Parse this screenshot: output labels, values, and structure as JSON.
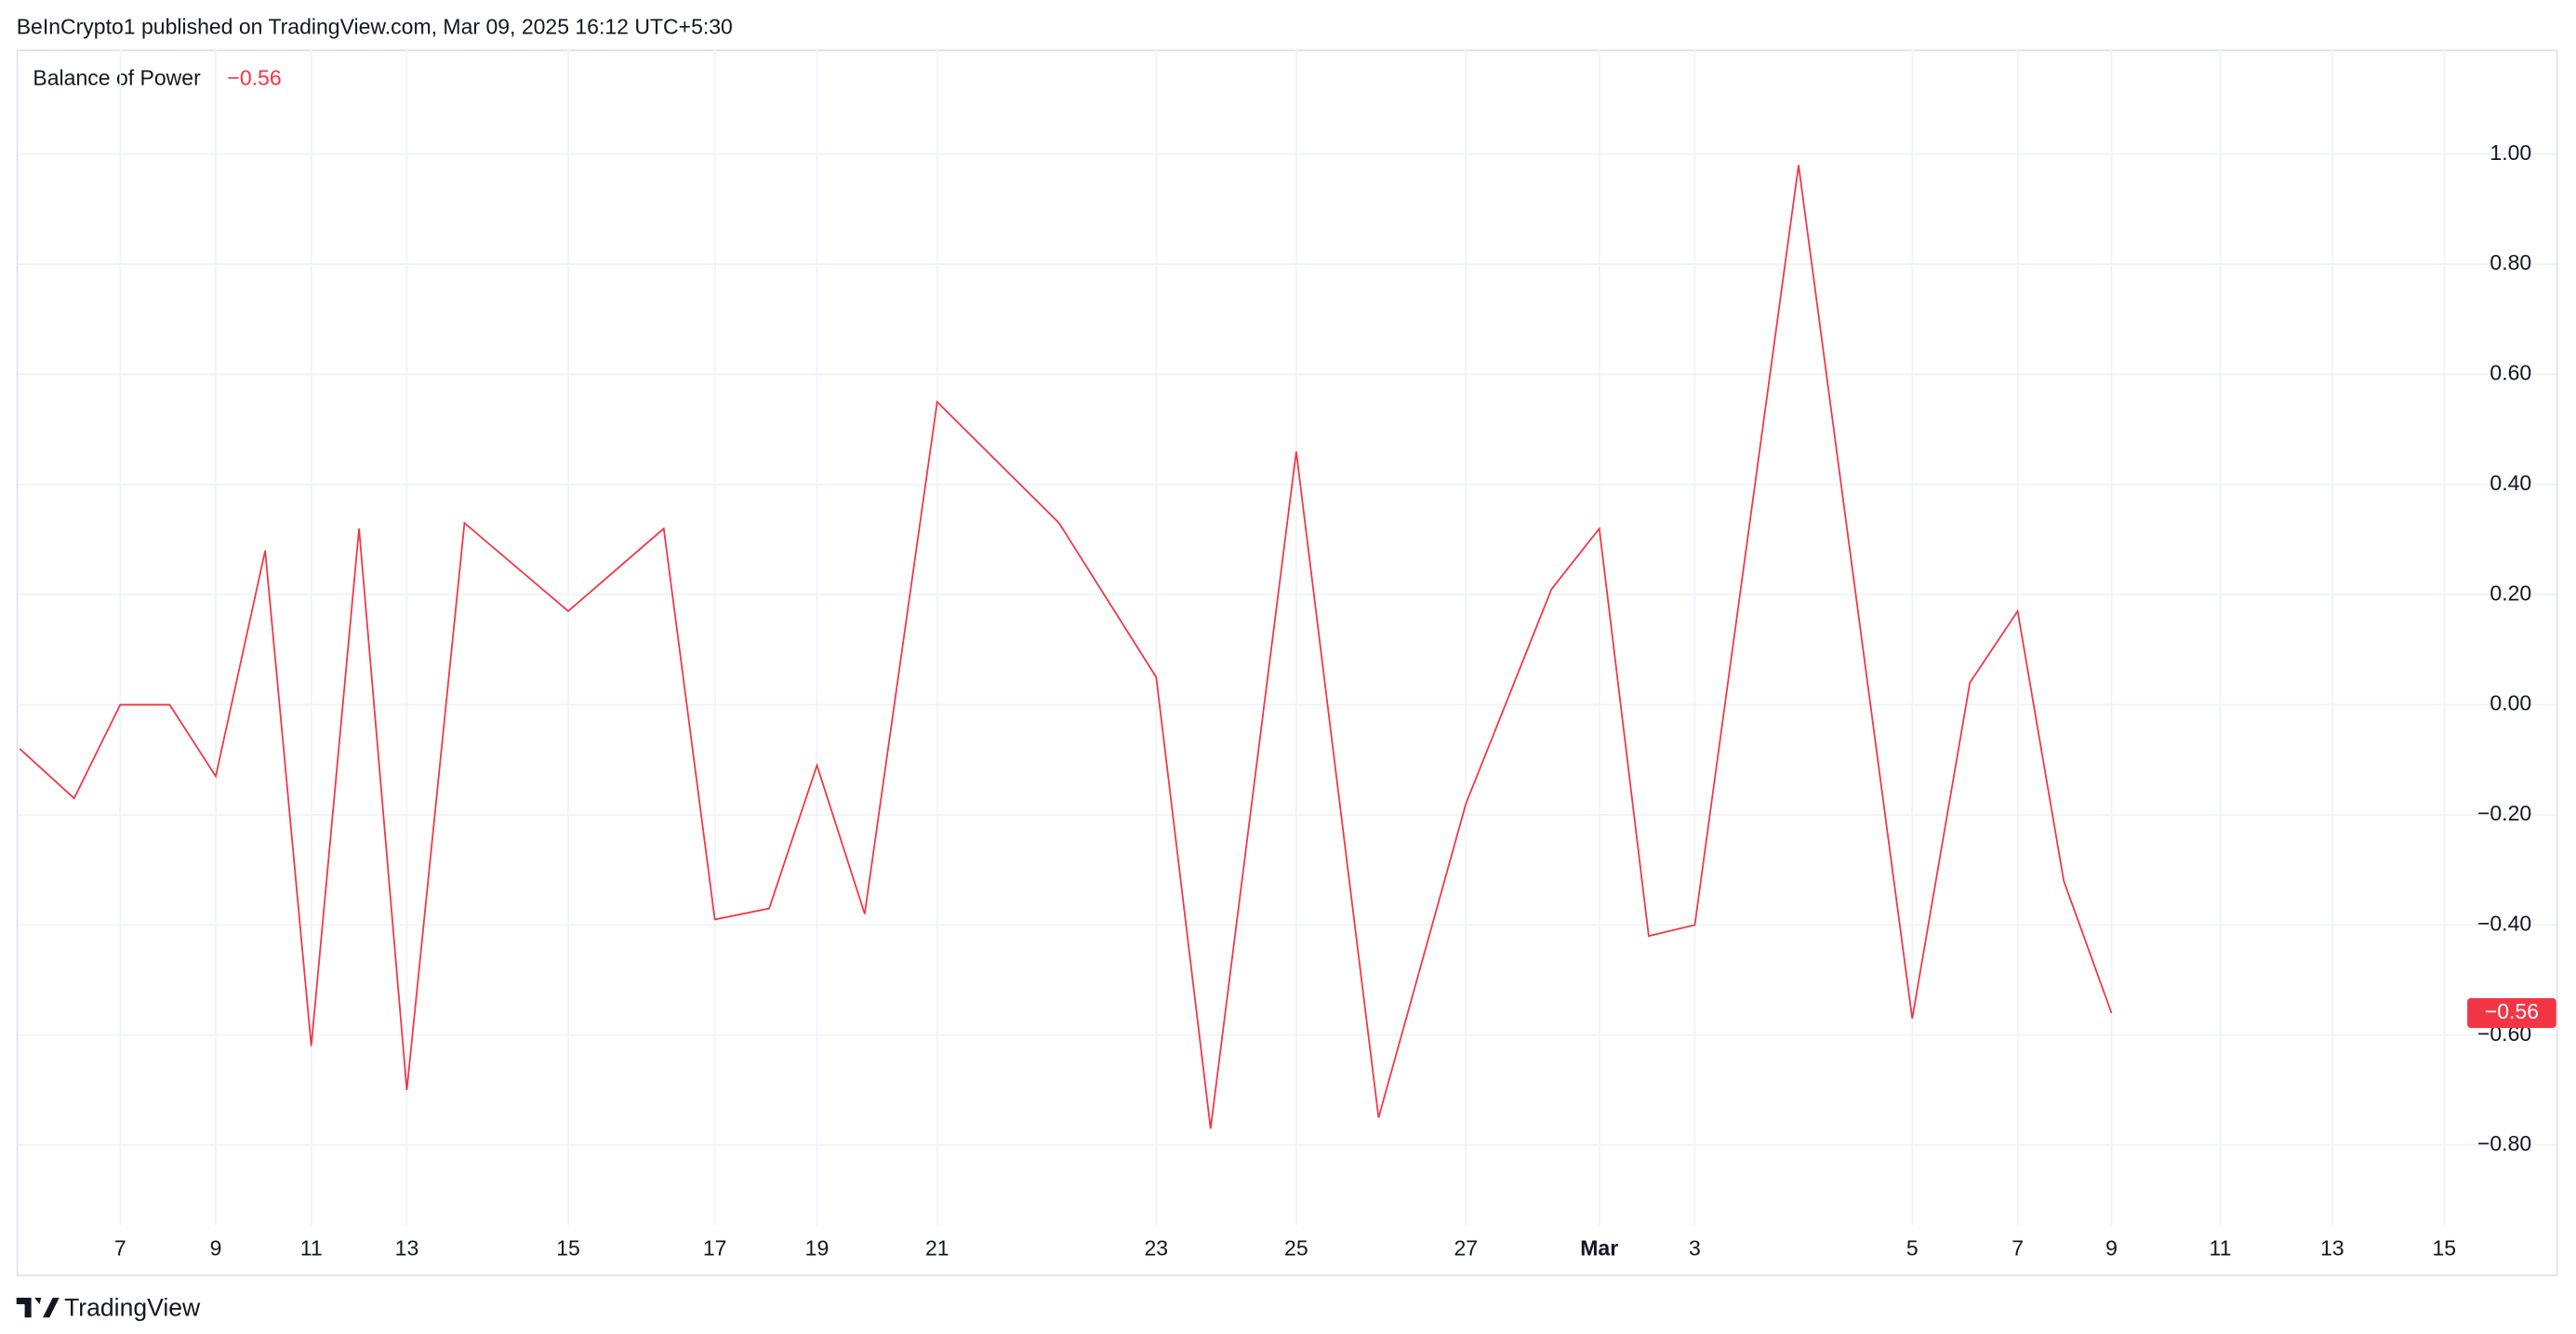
{
  "header": "BeInCrypto1 published on TradingView.com, Mar 09, 2025 16:12 UTC+5:30",
  "footer": "TradingView",
  "chart_data": {
    "type": "line",
    "title": "Balance of Power",
    "last_value_label": "−0.56",
    "color": "#f23645",
    "categories": [
      null,
      null,
      "7",
      null,
      "9",
      null,
      "11",
      null,
      "13",
      null,
      "15",
      null,
      "17",
      null,
      "19",
      null,
      "21",
      null,
      "23",
      null,
      "25",
      null,
      "27",
      null,
      "Mar",
      null,
      "3",
      null,
      "5",
      null,
      "7",
      null,
      "9"
    ],
    "future_xticks": [
      "11",
      "13",
      "15"
    ],
    "values": [
      -0.08,
      -0.17,
      0.0,
      0.0,
      -0.13,
      0.28,
      -0.62,
      0.32,
      -0.7,
      0.33,
      0.17,
      0.32,
      -0.39,
      -0.37,
      -0.11,
      -0.38,
      0.55,
      0.33,
      0.05,
      -0.77,
      0.46,
      -0.75,
      -0.18,
      0.21,
      0.32,
      -0.42,
      -0.4,
      0.98,
      -0.57,
      0.04,
      0.17,
      -0.32,
      -0.56
    ],
    "ylim": [
      -0.945,
      1.19
    ],
    "yticks": [
      {
        "value": 1.0,
        "label": "1.00"
      },
      {
        "value": 0.8,
        "label": "0.80"
      },
      {
        "value": 0.6,
        "label": "0.60"
      },
      {
        "value": 0.4,
        "label": "0.40"
      },
      {
        "value": 0.2,
        "label": "0.20"
      },
      {
        "value": 0,
        "label": "0.00"
      },
      {
        "value": -0.2,
        "label": "−0.20"
      },
      {
        "value": -0.4,
        "label": "−0.40"
      },
      {
        "value": -0.6,
        "label": "−0.60"
      },
      {
        "value": -0.8,
        "label": "−0.80"
      }
    ],
    "grid": true
  }
}
